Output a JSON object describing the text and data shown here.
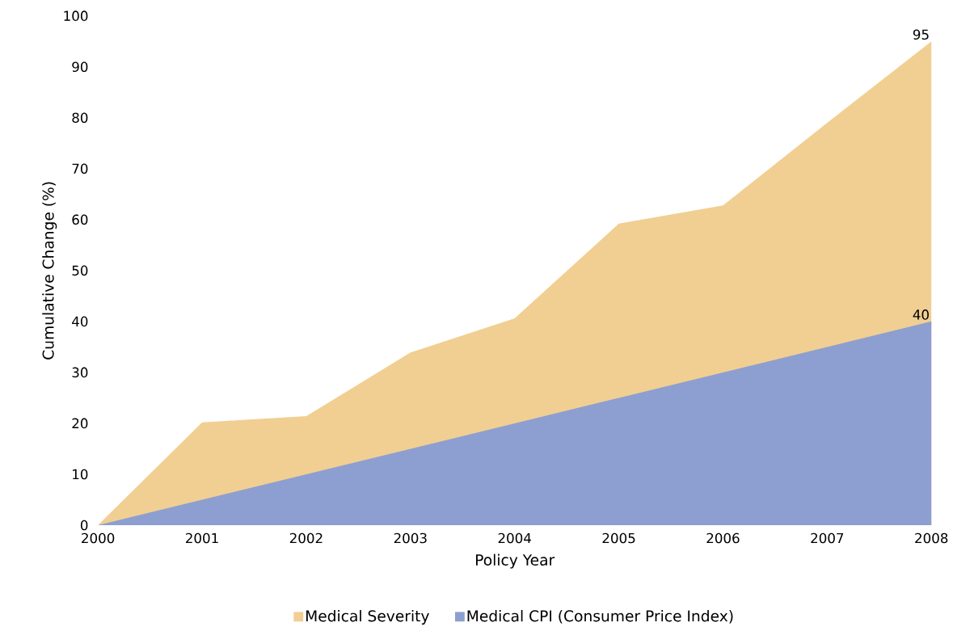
{
  "chart_data": {
    "type": "area",
    "xlabel": "Policy Year",
    "ylabel": "Cumulative Change (%)",
    "x": [
      2000,
      2001,
      2002,
      2003,
      2004,
      2005,
      2006,
      2007,
      2008
    ],
    "xlim": [
      2000,
      2008
    ],
    "xticks": [
      2000,
      2001,
      2002,
      2003,
      2004,
      2005,
      2006,
      2007,
      2008
    ],
    "ylim": [
      0,
      100
    ],
    "yticks": [
      0,
      10,
      20,
      30,
      40,
      50,
      60,
      70,
      80,
      90,
      100
    ],
    "legend": "bottom",
    "series": [
      {
        "name": "Medical Severity",
        "color": "#f1cf92",
        "values": [
          0,
          20.2,
          21.4,
          33.9,
          40.6,
          59.2,
          62.8,
          79,
          95
        ],
        "value_labels": [
          null,
          null,
          null,
          null,
          null,
          null,
          null,
          null,
          "95"
        ]
      },
      {
        "name": "Medical CPI (Consumer Price Index)",
        "color": "#8d9fd1",
        "values": [
          0,
          5,
          10,
          15,
          20,
          25,
          30,
          35,
          40
        ],
        "value_labels": [
          null,
          null,
          null,
          null,
          null,
          null,
          null,
          null,
          "40"
        ]
      }
    ]
  }
}
